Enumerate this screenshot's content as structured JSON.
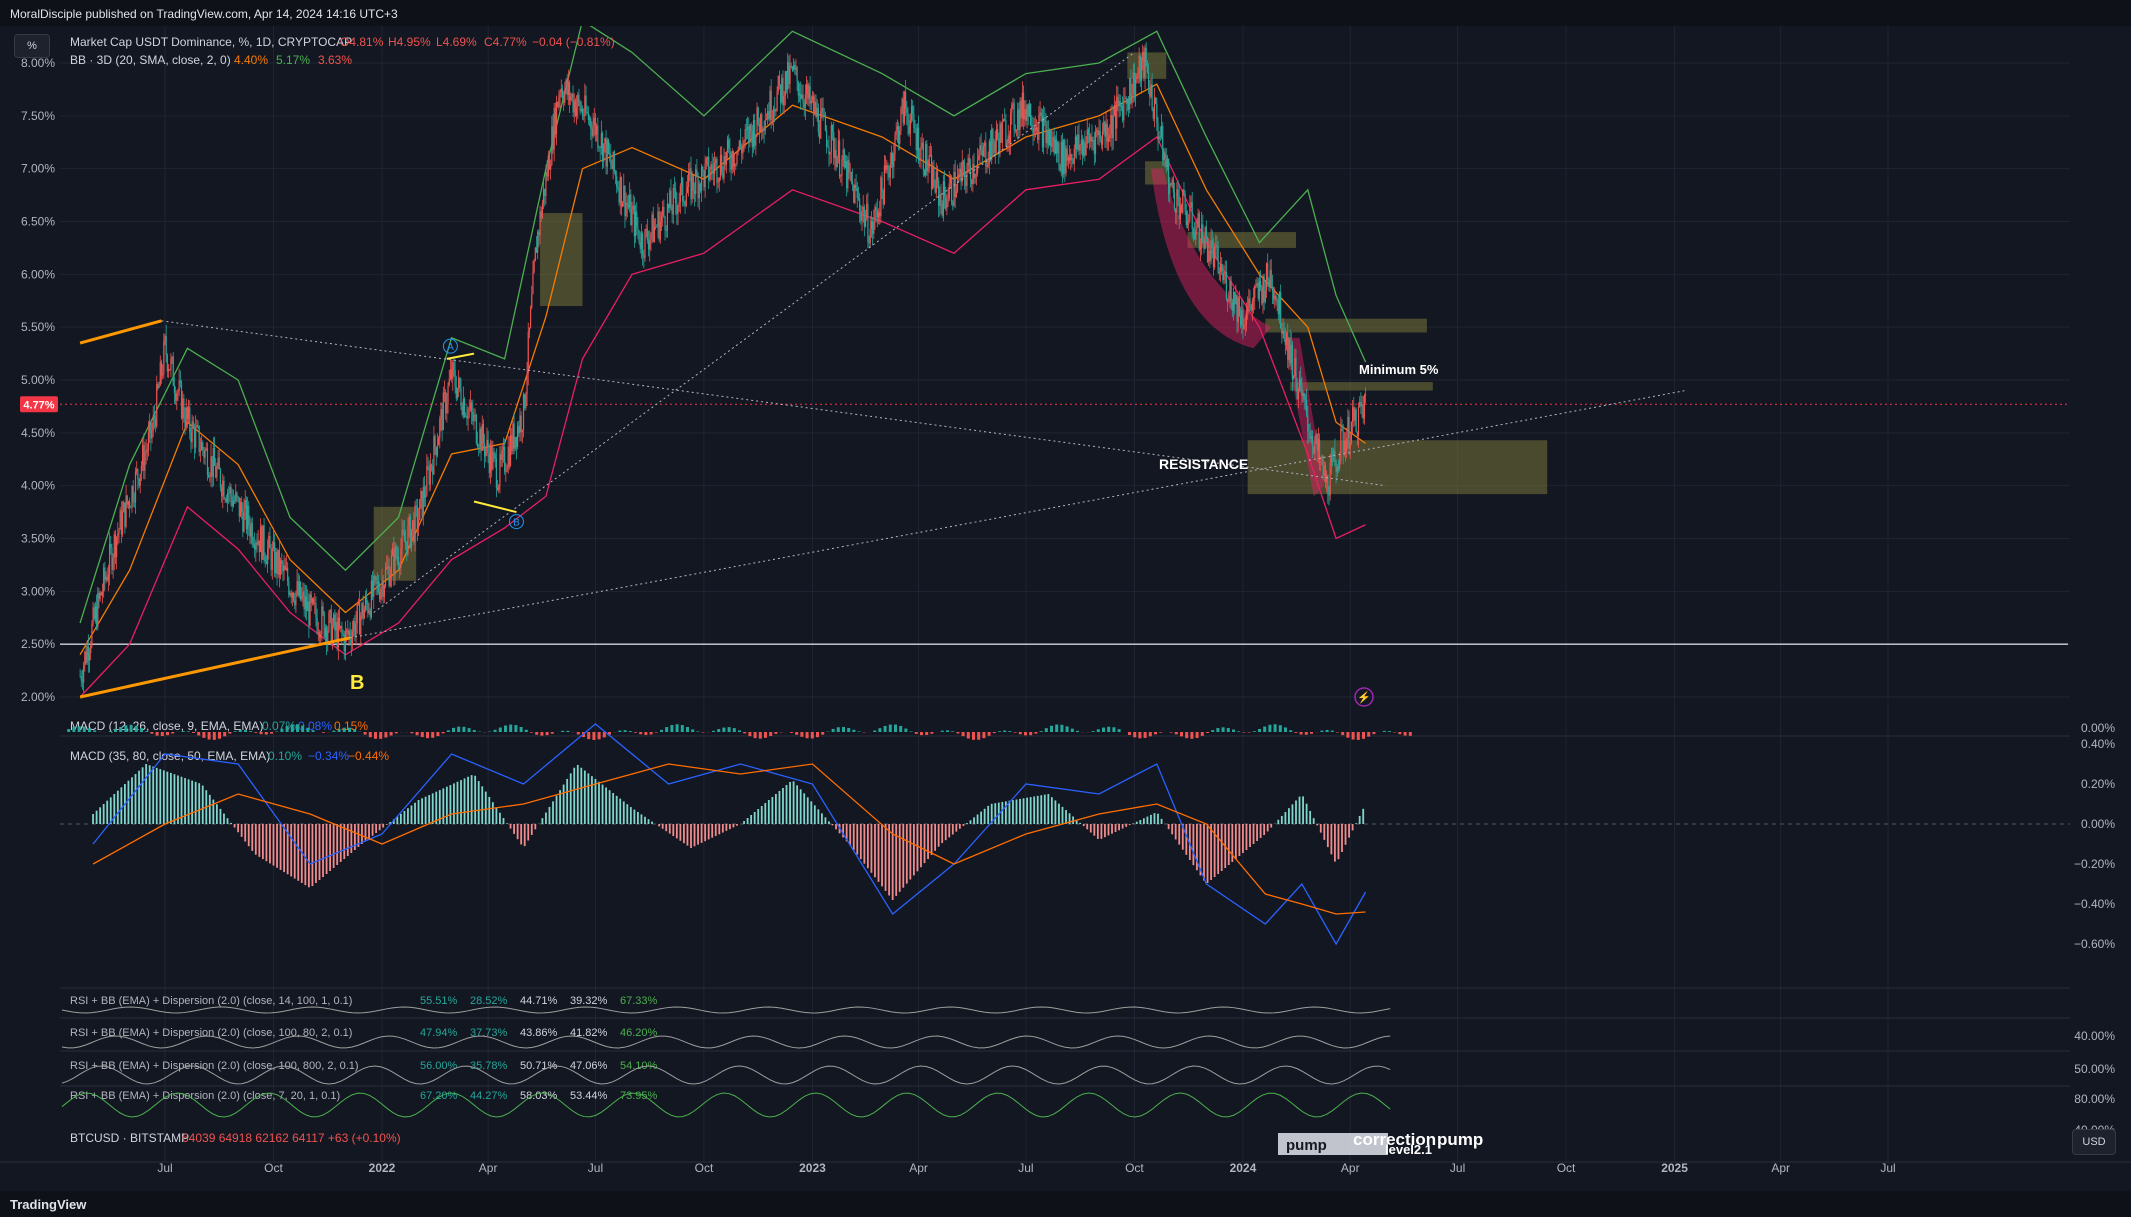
{
  "header": {
    "published": "MoralDisciple published on TradingView.com, Apr 14, 2024 14:16 UTC+3"
  },
  "footer": {
    "logo": "TradingView"
  },
  "scale_button": "%",
  "currency_button": "USD",
  "legend": {
    "main_title": "Market Cap USDT Dominance, %, 1D, CRYPTOCAP",
    "ohlc": [
      {
        "k": "O",
        "v": "4.81%"
      },
      {
        "k": "H",
        "v": "4.95%"
      },
      {
        "k": "L",
        "v": "4.69%"
      },
      {
        "k": "C",
        "v": "4.77%"
      },
      {
        "k": "",
        "v": "−0.04 (−0.81%)"
      }
    ],
    "bb_title": "BB · 3D (20, SMA, close, 2, 0)",
    "bb_values": [
      "4.40%",
      "5.17%",
      "3.63%"
    ],
    "macd1_title": "MACD (12, 26, close, 9, EMA, EMA)",
    "macd1_values": [
      "0.07%",
      "0.08%",
      "0.15%"
    ],
    "macd2_title": "MACD (35, 80, close, 50, EMA, EMA)",
    "macd2_values": [
      "0.10%",
      "−0.34%",
      "−0.44%"
    ],
    "rsi1_title": "RSI + BB (EMA) + Dispersion (2.0) (close, 14, 100, 1, 0.1)",
    "rsi1_values": [
      "55.51%",
      "28.52%",
      "44.71%",
      "39.32%",
      "67.33%"
    ],
    "rsi2_title": "RSI + BB (EMA) + Dispersion (2.0) (close, 100, 80, 2, 0.1)",
    "rsi2_values": [
      "47.94%",
      "37.73%",
      "43.86%",
      "41.82%",
      "46.20%"
    ],
    "rsi3_title": "RSI + BB (EMA) + Dispersion (2.0) (close, 100, 800, 2, 0.1)",
    "rsi3_values": [
      "56.00%",
      "35.78%",
      "50.71%",
      "47.06%",
      "54.10%"
    ],
    "rsi4_title": "RSI + BB (EMA) + Dispersion (2.0) (close, 7, 20, 1, 0.1)",
    "rsi4_values": [
      "67.20%",
      "44.27%",
      "58.03%",
      "53.44%",
      "73.95%"
    ],
    "btc_title": "BTCUSD · BITSTAMP",
    "btc_values": "64039  64918  62162  64117  +63 (+0.10%)"
  },
  "annotations": {
    "minimum": "Minimum 5%",
    "resistance": "RESISTANCE",
    "b_label": "B",
    "wave_a": "A",
    "wave_b": "B",
    "pump1": "pump",
    "pump2": "pump",
    "correction": "correction",
    "level": "level2.1"
  },
  "colors": {
    "bull": "#26a69a",
    "bear": "#ef5350",
    "bb_mid": "#f57c00",
    "bb_upper": "#4caf50",
    "bb_lower": "#e91e63",
    "macd": "#2962ff",
    "signal": "#ff6d00",
    "price_tag": "#f23645",
    "zone": "#8b8a3e"
  },
  "chart_data": [
    {
      "type": "candlestick",
      "title": "Market Cap USDT Dominance, %, 1D, CRYPTOCAP",
      "ylim": [
        1.95,
        8.1
      ],
      "y_ticks": [
        "8.00%",
        "7.50%",
        "7.00%",
        "6.50%",
        "6.00%",
        "5.50%",
        "5.00%",
        "4.50%",
        "4.00%",
        "3.50%",
        "3.00%",
        "2.50%",
        "2.00%"
      ],
      "y_tick_values": [
        8.0,
        7.5,
        7.0,
        6.5,
        6.0,
        5.5,
        5.0,
        4.5,
        4.0,
        3.5,
        3.0,
        2.5,
        2.0
      ],
      "x_ticks": [
        "Jul",
        "Oct",
        "2022",
        "Apr",
        "Jul",
        "Oct",
        "2023",
        "Apr",
        "Jul",
        "Oct",
        "2024",
        "Apr",
        "Jul",
        "Oct",
        "2025",
        "Apr",
        "Jul"
      ],
      "x_tick_dates": [
        "2021-07-01",
        "2021-10-01",
        "2022-01-01",
        "2022-04-01",
        "2022-07-01",
        "2022-10-01",
        "2023-01-01",
        "2023-04-01",
        "2023-07-01",
        "2023-10-01",
        "2024-01-01",
        "2024-04-01",
        "2024-07-01",
        "2024-10-01",
        "2025-01-01",
        "2025-04-01",
        "2025-07-01"
      ],
      "last_price": "4.77%",
      "last_value": 4.77,
      "horizontal_level": 2.5,
      "close_path": [
        [
          "2021-04-20",
          2.2
        ],
        [
          "2021-05-20",
          3.5
        ],
        [
          "2021-06-20",
          4.5
        ],
        [
          "2021-07-01",
          5.3
        ],
        [
          "2021-07-20",
          4.6
        ],
        [
          "2021-08-10",
          4.2
        ],
        [
          "2021-09-01",
          3.8
        ],
        [
          "2021-10-01",
          3.3
        ],
        [
          "2021-11-01",
          2.8
        ],
        [
          "2021-12-01",
          2.55
        ],
        [
          "2022-01-01",
          3.1
        ],
        [
          "2022-02-01",
          3.7
        ],
        [
          "2022-03-01",
          5.05
        ],
        [
          "2022-03-20",
          4.6
        ],
        [
          "2022-04-10",
          4.1
        ],
        [
          "2022-05-01",
          4.7
        ],
        [
          "2022-05-12",
          6.3
        ],
        [
          "2022-06-01",
          7.8
        ],
        [
          "2022-07-01",
          7.4
        ],
        [
          "2022-08-10",
          6.3
        ],
        [
          "2022-09-15",
          6.8
        ],
        [
          "2022-11-01",
          7.2
        ],
        [
          "2022-12-15",
          7.9
        ],
        [
          "2023-01-20",
          7.2
        ],
        [
          "2023-02-20",
          6.4
        ],
        [
          "2023-03-20",
          7.6
        ],
        [
          "2023-04-20",
          6.7
        ],
        [
          "2023-06-01",
          7.2
        ],
        [
          "2023-07-01",
          7.6
        ],
        [
          "2023-08-01",
          7.1
        ],
        [
          "2023-09-10",
          7.4
        ],
        [
          "2023-10-10",
          8.0
        ],
        [
          "2023-11-01",
          6.8
        ],
        [
          "2023-12-01",
          6.3
        ],
        [
          "2024-01-01",
          5.6
        ],
        [
          "2024-01-25",
          6.0
        ],
        [
          "2024-02-20",
          4.8
        ],
        [
          "2024-03-12",
          4.0
        ],
        [
          "2024-03-25",
          4.4
        ],
        [
          "2024-04-14",
          4.77
        ]
      ],
      "bb_upper": [
        [
          "2021-04-20",
          2.7
        ],
        [
          "2021-06-01",
          4.2
        ],
        [
          "2021-07-20",
          5.3
        ],
        [
          "2021-09-01",
          5.0
        ],
        [
          "2021-10-15",
          3.7
        ],
        [
          "2021-12-01",
          3.2
        ],
        [
          "2022-01-15",
          3.7
        ],
        [
          "2022-03-01",
          5.4
        ],
        [
          "2022-04-15",
          5.2
        ],
        [
          "2022-05-20",
          7.0
        ],
        [
          "2022-06-20",
          8.4
        ],
        [
          "2022-08-01",
          8.1
        ],
        [
          "2022-10-01",
          7.5
        ],
        [
          "2022-12-15",
          8.3
        ],
        [
          "2023-03-01",
          7.9
        ],
        [
          "2023-05-01",
          7.5
        ],
        [
          "2023-07-01",
          7.9
        ],
        [
          "2023-09-01",
          8.0
        ],
        [
          "2023-10-20",
          8.3
        ],
        [
          "2023-12-01",
          7.3
        ],
        [
          "2024-01-15",
          6.3
        ],
        [
          "2024-02-25",
          6.8
        ],
        [
          "2024-03-20",
          5.8
        ],
        [
          "2024-04-14",
          5.17
        ]
      ],
      "bb_mid": [
        [
          "2021-04-20",
          2.4
        ],
        [
          "2021-06-01",
          3.2
        ],
        [
          "2021-07-20",
          4.6
        ],
        [
          "2021-09-01",
          4.2
        ],
        [
          "2021-10-15",
          3.3
        ],
        [
          "2021-12-01",
          2.8
        ],
        [
          "2022-01-15",
          3.2
        ],
        [
          "2022-03-01",
          4.3
        ],
        [
          "2022-04-15",
          4.4
        ],
        [
          "2022-05-20",
          5.6
        ],
        [
          "2022-06-20",
          7.0
        ],
        [
          "2022-08-01",
          7.2
        ],
        [
          "2022-10-01",
          6.9
        ],
        [
          "2022-12-15",
          7.6
        ],
        [
          "2023-03-01",
          7.3
        ],
        [
          "2023-05-01",
          6.9
        ],
        [
          "2023-07-01",
          7.3
        ],
        [
          "2023-09-01",
          7.5
        ],
        [
          "2023-10-20",
          7.8
        ],
        [
          "2023-12-01",
          6.8
        ],
        [
          "2024-01-15",
          6.0
        ],
        [
          "2024-02-25",
          5.5
        ],
        [
          "2024-03-20",
          4.6
        ],
        [
          "2024-04-14",
          4.4
        ]
      ],
      "bb_lower": [
        [
          "2021-04-20",
          2.0
        ],
        [
          "2021-06-01",
          2.5
        ],
        [
          "2021-07-20",
          3.8
        ],
        [
          "2021-09-01",
          3.4
        ],
        [
          "2021-10-15",
          2.8
        ],
        [
          "2021-12-01",
          2.4
        ],
        [
          "2022-01-15",
          2.7
        ],
        [
          "2022-03-01",
          3.3
        ],
        [
          "2022-04-15",
          3.6
        ],
        [
          "2022-05-20",
          3.9
        ],
        [
          "2022-06-20",
          5.2
        ],
        [
          "2022-08-01",
          6.0
        ],
        [
          "2022-10-01",
          6.2
        ],
        [
          "2022-12-15",
          6.8
        ],
        [
          "2023-03-01",
          6.5
        ],
        [
          "2023-05-01",
          6.2
        ],
        [
          "2023-07-01",
          6.8
        ],
        [
          "2023-09-01",
          6.9
        ],
        [
          "2023-10-20",
          7.3
        ],
        [
          "2023-12-01",
          6.3
        ],
        [
          "2024-01-15",
          5.5
        ],
        [
          "2024-02-25",
          4.3
        ],
        [
          "2024-03-20",
          3.5
        ],
        [
          "2024-04-14",
          3.63
        ]
      ]
    },
    {
      "type": "bar",
      "title": "MACD (35, 80, close, 50, EMA, EMA)",
      "ylim": [
        -0.7,
        0.45
      ],
      "y_ticks": [
        "0.40%",
        "0.20%",
        "0.00%",
        "−0.20%",
        "−0.40%",
        "−0.60%"
      ],
      "y_tick_values": [
        0.4,
        0.2,
        0.0,
        -0.2,
        -0.4,
        -0.6
      ],
      "histogram": [
        [
          "2021-05-01",
          0.05
        ],
        [
          "2021-06-15",
          0.3
        ],
        [
          "2021-08-01",
          0.2
        ],
        [
          "2021-09-15",
          -0.15
        ],
        [
          "2021-11-01",
          -0.32
        ],
        [
          "2021-12-15",
          -0.1
        ],
        [
          "2022-02-01",
          0.12
        ],
        [
          "2022-03-20",
          0.25
        ],
        [
          "2022-05-01",
          -0.12
        ],
        [
          "2022-06-15",
          0.3
        ],
        [
          "2022-08-01",
          0.08
        ],
        [
          "2022-09-20",
          -0.12
        ],
        [
          "2022-11-01",
          0.0
        ],
        [
          "2022-12-15",
          0.22
        ],
        [
          "2023-02-01",
          -0.1
        ],
        [
          "2023-03-10",
          -0.38
        ],
        [
          "2023-04-20",
          -0.1
        ],
        [
          "2023-06-01",
          0.1
        ],
        [
          "2023-07-20",
          0.15
        ],
        [
          "2023-09-01",
          -0.08
        ],
        [
          "2023-10-20",
          0.06
        ],
        [
          "2023-12-01",
          -0.3
        ],
        [
          "2024-01-20",
          -0.05
        ],
        [
          "2024-02-20",
          0.15
        ],
        [
          "2024-03-20",
          -0.2
        ],
        [
          "2024-04-14",
          0.1
        ]
      ],
      "macd_line": [
        [
          "2021-05-01",
          -0.1
        ],
        [
          "2021-07-01",
          0.35
        ],
        [
          "2021-09-01",
          0.3
        ],
        [
          "2021-11-01",
          -0.2
        ],
        [
          "2022-01-01",
          -0.05
        ],
        [
          "2022-03-01",
          0.35
        ],
        [
          "2022-05-01",
          0.2
        ],
        [
          "2022-07-01",
          0.5
        ],
        [
          "2022-09-01",
          0.2
        ],
        [
          "2022-11-01",
          0.3
        ],
        [
          "2023-01-01",
          0.2
        ],
        [
          "2023-03-10",
          -0.45
        ],
        [
          "2023-05-01",
          -0.2
        ],
        [
          "2023-07-01",
          0.2
        ],
        [
          "2023-09-01",
          0.15
        ],
        [
          "2023-10-20",
          0.3
        ],
        [
          "2023-12-01",
          -0.3
        ],
        [
          "2024-01-20",
          -0.5
        ],
        [
          "2024-02-20",
          -0.3
        ],
        [
          "2024-03-20",
          -0.6
        ],
        [
          "2024-04-14",
          -0.34
        ]
      ],
      "signal_line": [
        [
          "2021-05-01",
          -0.2
        ],
        [
          "2021-07-01",
          0.0
        ],
        [
          "2021-09-01",
          0.15
        ],
        [
          "2021-11-01",
          0.05
        ],
        [
          "2022-01-01",
          -0.1
        ],
        [
          "2022-03-01",
          0.05
        ],
        [
          "2022-05-01",
          0.1
        ],
        [
          "2022-07-01",
          0.2
        ],
        [
          "2022-09-01",
          0.3
        ],
        [
          "2022-11-01",
          0.25
        ],
        [
          "2023-01-01",
          0.3
        ],
        [
          "2023-03-10",
          -0.05
        ],
        [
          "2023-05-01",
          -0.2
        ],
        [
          "2023-07-01",
          -0.05
        ],
        [
          "2023-09-01",
          0.05
        ],
        [
          "2023-10-20",
          0.1
        ],
        [
          "2023-12-01",
          0.0
        ],
        [
          "2024-01-20",
          -0.35
        ],
        [
          "2024-02-20",
          -0.4
        ],
        [
          "2024-03-20",
          -0.45
        ],
        [
          "2024-04-14",
          -0.44
        ]
      ]
    }
  ]
}
